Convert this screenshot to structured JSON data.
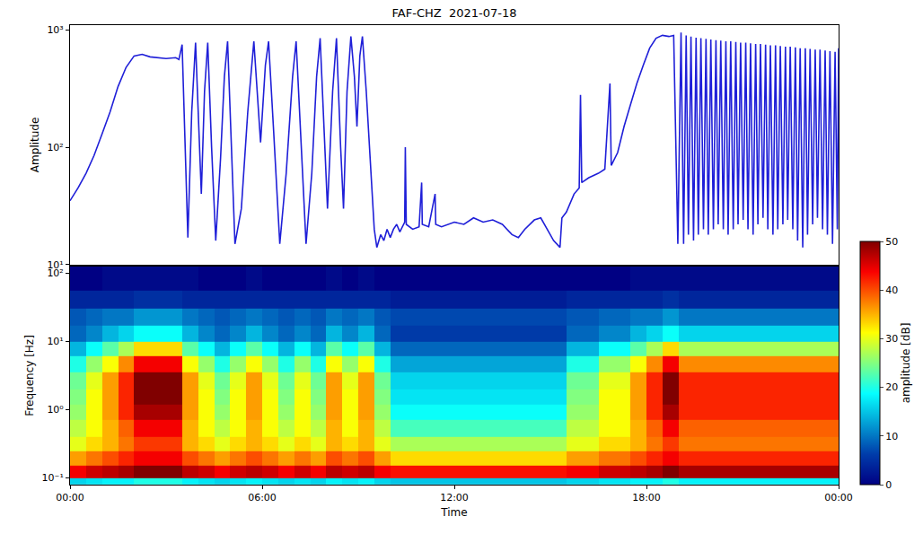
{
  "chart_data": [
    {
      "type": "line",
      "title": "FAF-CHZ  2021-07-18",
      "ylabel": "Amplitude",
      "xlim": [
        0,
        24
      ],
      "ylim": [
        10,
        1100
      ],
      "yticks": [
        {
          "value": 10,
          "label": "10¹"
        },
        {
          "value": 100,
          "label": "10²"
        },
        {
          "value": 1000,
          "label": "10³"
        }
      ],
      "log": "y",
      "grid": false,
      "tick_labels": "y",
      "series": [
        {
          "color": "#1f1fd8",
          "x": [
            0,
            0.25,
            0.5,
            0.75,
            1,
            1.25,
            1.5,
            1.75,
            2,
            2.25,
            2.5,
            2.75,
            3,
            3.3,
            3.4,
            3.5,
            3.6,
            3.68,
            3.8,
            3.92,
            4.02,
            4.1,
            4.2,
            4.3,
            4.42,
            4.55,
            4.7,
            4.82,
            4.92,
            5.05,
            5.15,
            5.35,
            5.55,
            5.74,
            5.85,
            5.95,
            6.1,
            6.2,
            6.35,
            6.55,
            6.75,
            6.95,
            7.06,
            7.2,
            7.37,
            7.55,
            7.7,
            7.81,
            7.95,
            8.04,
            8.2,
            8.32,
            8.45,
            8.54,
            8.65,
            8.77,
            8.88,
            8.96,
            9.05,
            9.13,
            9.25,
            9.4,
            9.5,
            9.58,
            9.7,
            9.8,
            9.9,
            10,
            10.1,
            10.2,
            10.3,
            10.45,
            10.47,
            10.5,
            10.7,
            10.9,
            10.98,
            11,
            11.2,
            11.4,
            11.42,
            11.6,
            11.8,
            12,
            12.3,
            12.6,
            12.9,
            13.2,
            13.5,
            13.8,
            14,
            14.2,
            14.5,
            14.7,
            14.9,
            15.1,
            15.3,
            15.36,
            15.5,
            15.74,
            15.9,
            15.94,
            15.98,
            16.2,
            16.5,
            16.7,
            16.86,
            16.9,
            17.1,
            17.3,
            17.5,
            17.7,
            17.9,
            18.1,
            18.3,
            18.5,
            18.7,
            18.85,
            18.98,
            19.08,
            19.16,
            19.24,
            19.31,
            19.39,
            19.47,
            19.55,
            19.62,
            19.7,
            19.78,
            19.86,
            19.93,
            20.01,
            20.09,
            20.17,
            20.24,
            20.32,
            20.4,
            20.48,
            20.55,
            20.63,
            20.71,
            20.79,
            20.86,
            20.94,
            21.02,
            21.1,
            21.17,
            21.25,
            21.33,
            21.41,
            21.48,
            21.56,
            21.64,
            21.72,
            21.79,
            21.87,
            21.95,
            22.03,
            22.1,
            22.18,
            22.26,
            22.34,
            22.41,
            22.49,
            22.57,
            22.65,
            22.72,
            22.8,
            22.88,
            22.96,
            23.03,
            23.11,
            23.19,
            23.27,
            23.34,
            23.42,
            23.5,
            23.58,
            23.65,
            23.73,
            23.81,
            23.89,
            23.96,
            24
          ],
          "values": [
            35,
            45,
            60,
            85,
            130,
            200,
            330,
            480,
            600,
            620,
            590,
            580,
            570,
            580,
            560,
            750,
            100,
            17,
            200,
            780,
            150,
            40,
            300,
            780,
            100,
            16,
            80,
            400,
            800,
            100,
            15,
            30,
            200,
            800,
            300,
            110,
            500,
            800,
            150,
            15,
            60,
            400,
            800,
            120,
            15,
            60,
            400,
            850,
            120,
            30,
            300,
            850,
            100,
            30,
            300,
            880,
            400,
            150,
            600,
            880,
            300,
            60,
            20,
            14,
            18,
            16,
            20,
            17,
            20,
            22,
            19,
            23,
            100,
            22,
            20,
            21,
            50,
            22,
            21,
            40,
            22,
            21,
            22,
            23,
            22,
            25,
            23,
            24,
            22,
            18,
            17,
            20,
            24,
            25,
            20,
            16,
            14,
            25,
            28,
            40,
            45,
            280,
            50,
            55,
            60,
            65,
            350,
            70,
            90,
            150,
            230,
            350,
            500,
            700,
            850,
            900,
            880,
            900,
            15,
            950,
            15,
            900,
            18,
            880,
            16,
            860,
            18,
            850,
            20,
            840,
            18,
            830,
            20,
            820,
            22,
            810,
            20,
            800,
            18,
            800,
            20,
            790,
            22,
            780,
            24,
            780,
            20,
            770,
            18,
            760,
            22,
            760,
            25,
            750,
            20,
            740,
            18,
            740,
            20,
            730,
            22,
            720,
            24,
            720,
            20,
            710,
            16,
            700,
            14,
            700,
            18,
            690,
            22,
            680,
            25,
            680,
            20,
            670,
            18,
            660,
            15,
            650,
            20,
            700
          ]
        }
      ]
    },
    {
      "type": "heatmap",
      "xlabel": "Time",
      "ylabel": "Frequency [Hz]",
      "xlim": [
        0,
        24
      ],
      "xticks": [
        {
          "value": 0,
          "label": "00:00"
        },
        {
          "value": 6,
          "label": "06:00"
        },
        {
          "value": 12,
          "label": "12:00"
        },
        {
          "value": 18,
          "label": "18:00"
        },
        {
          "value": 24,
          "label": "00:00"
        }
      ],
      "ylim": [
        0.08,
        125
      ],
      "yticks": [
        {
          "value": 0.1,
          "label": "10⁻¹"
        },
        {
          "value": 1,
          "label": "10⁰"
        },
        {
          "value": 10,
          "label": "10¹"
        },
        {
          "value": 100,
          "label": "10²"
        }
      ],
      "log": "y",
      "grid": false,
      "x_edges": [
        0,
        0.5,
        1,
        1.5,
        2,
        2.5,
        3,
        3.5,
        4,
        4.5,
        5,
        5.5,
        6,
        6.5,
        7,
        7.5,
        8,
        8.5,
        9,
        9.5,
        10,
        10.5,
        11,
        11.5,
        12,
        12.5,
        13,
        13.5,
        14,
        14.5,
        15,
        15.5,
        16,
        16.5,
        17,
        17.5,
        18,
        18.5,
        19,
        19.5,
        20,
        20.5,
        21,
        21.5,
        22,
        22.5,
        23,
        23.5,
        24
      ],
      "y_edges": [
        0.08,
        0.1,
        0.15,
        0.25,
        0.4,
        0.7,
        1.2,
        2,
        3.5,
        6,
        10,
        17,
        30,
        55,
        125
      ],
      "cells": [
        [
          16,
          17,
          18,
          18,
          20,
          20,
          20,
          18,
          17,
          16,
          17,
          18,
          17,
          16,
          17,
          16,
          18,
          17,
          18,
          16,
          15,
          15,
          15,
          15,
          15,
          15,
          15,
          15,
          15,
          15,
          15,
          16,
          16,
          17,
          17,
          18,
          18,
          20,
          18,
          18,
          18,
          18,
          18,
          18,
          18,
          18,
          18,
          18
        ],
        [
          44,
          46,
          47,
          48,
          50,
          50,
          50,
          47,
          46,
          44,
          46,
          47,
          46,
          44,
          46,
          44,
          47,
          46,
          47,
          44,
          43,
          43,
          43,
          43,
          43,
          43,
          43,
          43,
          43,
          43,
          43,
          44,
          44,
          46,
          46,
          47,
          48,
          50,
          48,
          48,
          48,
          48,
          48,
          48,
          48,
          48,
          48,
          48
        ],
        [
          36,
          38,
          40,
          42,
          44,
          44,
          44,
          40,
          38,
          36,
          38,
          40,
          38,
          36,
          38,
          36,
          40,
          38,
          40,
          36,
          33,
          33,
          33,
          33,
          33,
          33,
          33,
          33,
          33,
          33,
          33,
          36,
          36,
          38,
          38,
          40,
          42,
          44,
          42,
          42,
          42,
          42,
          42,
          42,
          42,
          42,
          42,
          42
        ],
        [
          30,
          33,
          35,
          38,
          41,
          41,
          41,
          35,
          33,
          30,
          33,
          35,
          33,
          30,
          33,
          30,
          35,
          33,
          35,
          30,
          27,
          27,
          27,
          27,
          27,
          27,
          27,
          27,
          27,
          27,
          27,
          30,
          30,
          33,
          33,
          35,
          38,
          41,
          38,
          38,
          38,
          38,
          38,
          38,
          38,
          38,
          38,
          38
        ],
        [
          28,
          31,
          35,
          39,
          44,
          44,
          44,
          35,
          31,
          28,
          31,
          35,
          31,
          28,
          31,
          28,
          35,
          31,
          35,
          28,
          22,
          22,
          22,
          22,
          22,
          22,
          22,
          22,
          22,
          22,
          22,
          28,
          28,
          31,
          31,
          35,
          39,
          44,
          39,
          39,
          39,
          39,
          39,
          39,
          39,
          39,
          39,
          39
        ],
        [
          26,
          31,
          36,
          42,
          48,
          48,
          48,
          36,
          31,
          26,
          31,
          36,
          31,
          26,
          31,
          26,
          36,
          31,
          36,
          26,
          19,
          19,
          19,
          19,
          19,
          19,
          19,
          19,
          19,
          19,
          19,
          26,
          26,
          31,
          31,
          36,
          42,
          48,
          42,
          42,
          42,
          42,
          42,
          42,
          42,
          42,
          42,
          42
        ],
        [
          25,
          31,
          36,
          42,
          50,
          50,
          50,
          36,
          31,
          25,
          31,
          36,
          31,
          25,
          31,
          25,
          36,
          31,
          36,
          25,
          17,
          17,
          17,
          17,
          17,
          17,
          17,
          17,
          17,
          17,
          17,
          25,
          25,
          31,
          31,
          36,
          42,
          50,
          42,
          42,
          42,
          42,
          42,
          42,
          42,
          42,
          42,
          42
        ],
        [
          24,
          30,
          36,
          42,
          50,
          50,
          50,
          36,
          30,
          24,
          30,
          36,
          30,
          24,
          30,
          24,
          36,
          30,
          36,
          24,
          16,
          16,
          16,
          16,
          16,
          16,
          16,
          16,
          16,
          16,
          16,
          24,
          24,
          30,
          30,
          36,
          42,
          50,
          42,
          42,
          42,
          42,
          42,
          42,
          42,
          42,
          42,
          42
        ],
        [
          20,
          26,
          31,
          37,
          44,
          44,
          44,
          31,
          26,
          20,
          26,
          31,
          26,
          20,
          26,
          20,
          31,
          26,
          31,
          20,
          13,
          13,
          13,
          13,
          13,
          13,
          13,
          13,
          13,
          13,
          13,
          20,
          20,
          26,
          26,
          31,
          37,
          44,
          37,
          37,
          37,
          37,
          37,
          37,
          37,
          37,
          37,
          37
        ],
        [
          14,
          19,
          23,
          27,
          33,
          33,
          33,
          23,
          19,
          14,
          19,
          23,
          19,
          14,
          19,
          14,
          23,
          19,
          23,
          14,
          9,
          9,
          9,
          9,
          9,
          9,
          9,
          9,
          9,
          9,
          9,
          14,
          14,
          19,
          19,
          23,
          27,
          33,
          27,
          27,
          27,
          27,
          27,
          27,
          27,
          27,
          27,
          27
        ],
        [
          9,
          11,
          14,
          16,
          19,
          19,
          19,
          14,
          11,
          9,
          11,
          14,
          11,
          9,
          11,
          9,
          14,
          11,
          14,
          9,
          6,
          6,
          6,
          6,
          6,
          6,
          6,
          6,
          6,
          6,
          6,
          9,
          9,
          11,
          11,
          14,
          16,
          19,
          16,
          16,
          16,
          16,
          16,
          16,
          16,
          16,
          16,
          16
        ],
        [
          8,
          9,
          10,
          10,
          12,
          12,
          12,
          10,
          9,
          8,
          9,
          10,
          9,
          8,
          9,
          8,
          10,
          9,
          10,
          8,
          7,
          7,
          7,
          7,
          7,
          7,
          7,
          7,
          7,
          7,
          7,
          8,
          8,
          9,
          9,
          10,
          10,
          12,
          10,
          10,
          10,
          10,
          10,
          10,
          10,
          10,
          10,
          10
        ],
        [
          4,
          4,
          4,
          4,
          5,
          5,
          5,
          4,
          4,
          4,
          4,
          4,
          4,
          4,
          4,
          4,
          4,
          4,
          4,
          4,
          3,
          3,
          3,
          3,
          3,
          3,
          3,
          3,
          3,
          3,
          3,
          4,
          4,
          4,
          4,
          4,
          4,
          5,
          4,
          4,
          4,
          4,
          4,
          4,
          4,
          4,
          4,
          4
        ],
        [
          0,
          0,
          1,
          1,
          1,
          1,
          1,
          1,
          0,
          0,
          0,
          1,
          0,
          0,
          0,
          0,
          1,
          0,
          1,
          0,
          0,
          0,
          0,
          0,
          0,
          0,
          0,
          0,
          0,
          0,
          0,
          0,
          0,
          0,
          0,
          1,
          1,
          1,
          1,
          1,
          1,
          1,
          1,
          1,
          1,
          1,
          1,
          1
        ]
      ],
      "zlim": [
        0,
        50
      ],
      "zticks": [
        0,
        10,
        20,
        30,
        40,
        50
      ],
      "zlabel": "amplitude [dB]"
    }
  ]
}
